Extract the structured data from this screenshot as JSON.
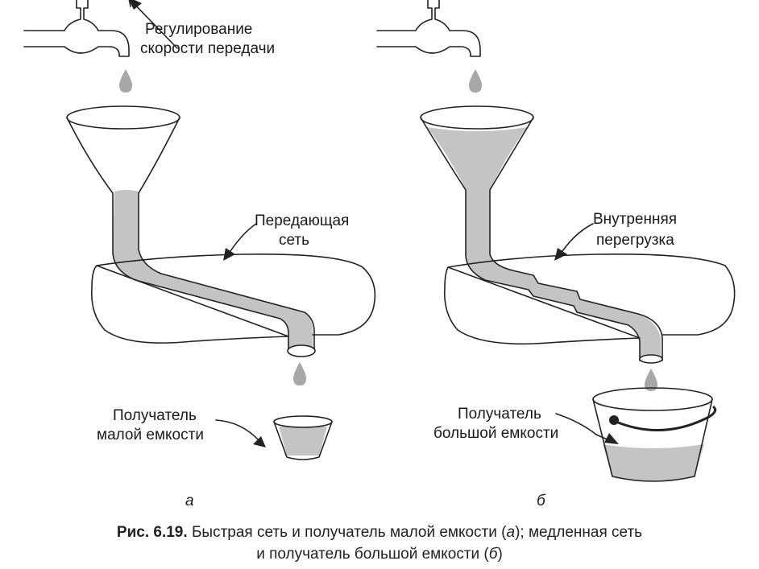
{
  "labels": {
    "rate_control_line1": "Регулирование",
    "rate_control_line2": "скорости передачи",
    "network_a_line1": "Передающая",
    "network_a_line2": "сеть",
    "congestion_line1": "Внутренняя",
    "congestion_line2": "перегрузка",
    "receiver_a_line1": "Получатель",
    "receiver_a_line2": "малой емкости",
    "receiver_b_line1": "Получатель",
    "receiver_b_line2": "большой емкости",
    "sub_a": "а",
    "sub_b": "б"
  },
  "caption": {
    "number": "Рис. 6.19.",
    "line1": " Быстрая сеть и получатель малой емкости (",
    "a": "а",
    "mid": "); медленная сеть",
    "line2": "и получатель большой емкости (",
    "b": "б",
    "end": ")"
  },
  "colors": {
    "water": "#c4c4c4",
    "outline": "#222222"
  }
}
